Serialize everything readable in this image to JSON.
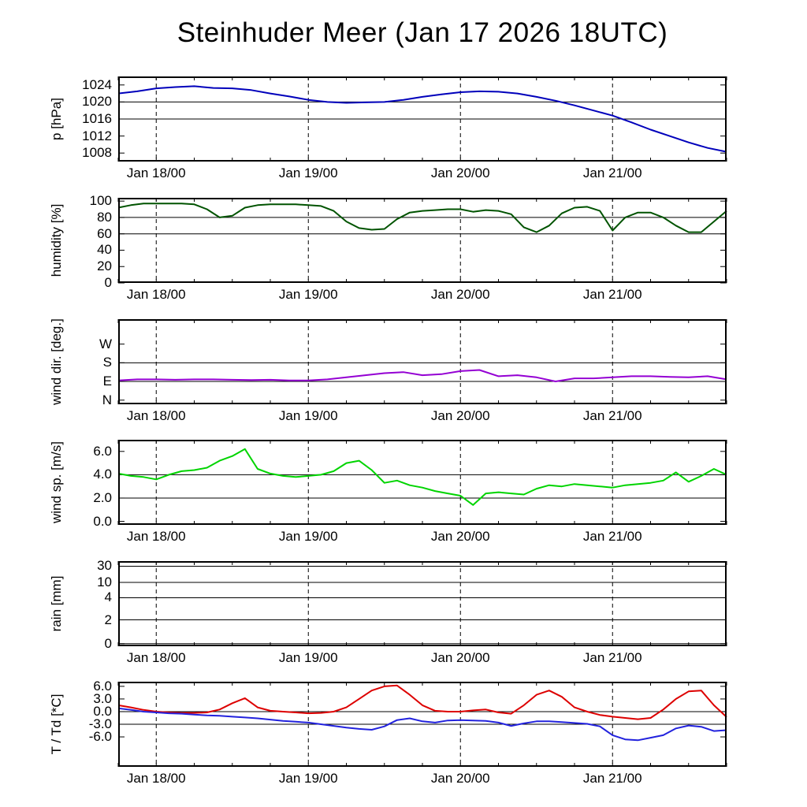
{
  "chart_data": {
    "type": "line",
    "title": "Steinhuder Meer (Jan 17 2026 18UTC)",
    "x_axis": {
      "lim": [
        0,
        96
      ],
      "minor_step": 6,
      "major_ticks": [
        {
          "t": 6,
          "label": "Jan 18/00"
        },
        {
          "t": 30,
          "label": "Jan 19/00"
        },
        {
          "t": 54,
          "label": "Jan 20/00"
        },
        {
          "t": 78,
          "label": "Jan 21/00"
        }
      ]
    },
    "panels": [
      {
        "id": "pressure",
        "ylabel": "p [hPa]",
        "ylim": [
          1006,
          1026
        ],
        "yticks": {
          "values": [
            1008,
            1012,
            1016,
            1020,
            1024
          ],
          "labels": [
            "1008",
            "1012",
            "1016",
            "1020",
            "1024"
          ]
        },
        "grid": [
          1016,
          1020
        ],
        "series": [
          {
            "name": "pressure",
            "color": "#0000bb",
            "t0": 0,
            "t_step": 3,
            "values": [
              1022.0,
              1022.5,
              1023.2,
              1023.5,
              1023.7,
              1023.3,
              1023.2,
              1022.8,
              1022.0,
              1021.3,
              1020.5,
              1020.0,
              1019.8,
              1019.9,
              1020.0,
              1020.5,
              1021.2,
              1021.8,
              1022.3,
              1022.5,
              1022.4,
              1022.0,
              1021.2,
              1020.3,
              1019.2,
              1018.0,
              1016.8,
              1015.2,
              1013.5,
              1012.0,
              1010.5,
              1009.2,
              1008.3
            ]
          }
        ]
      },
      {
        "id": "humidity",
        "ylabel": "humidity [%]",
        "ylim": [
          0,
          104
        ],
        "yticks": {
          "values": [
            0,
            20,
            40,
            60,
            80,
            100
          ],
          "labels": [
            "0",
            "20",
            "40",
            "60",
            "80",
            "100"
          ]
        },
        "grid": [
          60,
          80
        ],
        "series": [
          {
            "name": "humidity",
            "color": "#005300",
            "t0": 0,
            "t_step": 2,
            "values": [
              92,
              95,
              97,
              97,
              97,
              97,
              96,
              90,
              80,
              82,
              92,
              95,
              96,
              96,
              96,
              95,
              94,
              88,
              75,
              67,
              65,
              66,
              78,
              86,
              88,
              89,
              90,
              90,
              87,
              89,
              88,
              84,
              68,
              62,
              70,
              85,
              92,
              93,
              88,
              64,
              80,
              86,
              86,
              80,
              70,
              62,
              62,
              75,
              88
            ]
          }
        ]
      },
      {
        "id": "wind-direction",
        "ylabel": "wind dir. [deg.]",
        "ylim": [
          -20,
          390
        ],
        "yticks": {
          "values": [
            0,
            90,
            180,
            270
          ],
          "labels": [
            "N",
            "E",
            "S",
            "W"
          ]
        },
        "grid": [
          90,
          180
        ],
        "series": [
          {
            "name": "wind-direction",
            "color": "#9400d3",
            "t0": 0,
            "t_step": 3,
            "values": [
              95,
              100,
              100,
              98,
              100,
              100,
              98,
              97,
              98,
              95,
              95,
              100,
              110,
              120,
              130,
              135,
              120,
              125,
              140,
              145,
              115,
              120,
              110,
              90,
              105,
              105,
              110,
              115,
              115,
              112,
              110,
              115,
              100
            ]
          }
        ]
      },
      {
        "id": "wind-speed",
        "ylabel": "wind sp. [m/s]",
        "ylim": [
          -0.3,
          7.0
        ],
        "yticks": {
          "values": [
            0,
            2,
            4,
            6
          ],
          "labels": [
            "0.0",
            "2.0",
            "4.0",
            "6.0"
          ]
        },
        "grid": [
          2,
          4
        ],
        "series": [
          {
            "name": "wind-speed",
            "color": "#00d400",
            "t0": 0,
            "t_step": 2,
            "values": [
              4.1,
              3.9,
              3.8,
              3.6,
              4.0,
              4.3,
              4.4,
              4.6,
              5.2,
              5.6,
              6.2,
              4.5,
              4.1,
              3.9,
              3.8,
              3.9,
              4.0,
              4.3,
              5.0,
              5.2,
              4.4,
              3.3,
              3.5,
              3.1,
              2.9,
              2.6,
              2.4,
              2.2,
              1.4,
              2.4,
              2.5,
              2.4,
              2.3,
              2.8,
              3.1,
              3.0,
              3.2,
              3.1,
              3.0,
              2.9,
              3.1,
              3.2,
              3.3,
              3.5,
              4.2,
              3.4,
              3.9,
              4.5,
              4.0
            ]
          }
        ]
      },
      {
        "id": "rain",
        "ylabel": "rain [mm]",
        "yscale": "custom",
        "ylim": [
          0,
          30
        ],
        "yticks": {
          "labels": [
            "0",
            "2",
            "4",
            "10",
            "30"
          ],
          "fracs": [
            0.03,
            0.31,
            0.57,
            0.75,
            0.94
          ]
        },
        "series": []
      },
      {
        "id": "temperature",
        "ylabel": "T / Td [*C]",
        "ylim": [
          -13.1,
          7.1
        ],
        "yticks": {
          "values": [
            -6,
            -3,
            0,
            3,
            6
          ],
          "labels": [
            "-6.0",
            "-3.0",
            "0.0",
            "3.0",
            "6.0"
          ]
        },
        "grid": [
          -3,
          0
        ],
        "series": [
          {
            "name": "temperature",
            "color": "#dd0000",
            "t0": 0,
            "t_step": 2,
            "values": [
              1.5,
              1.0,
              0.4,
              0.0,
              -0.2,
              -0.3,
              -0.3,
              -0.2,
              0.5,
              2.0,
              3.2,
              1.0,
              0.2,
              0.0,
              -0.2,
              -0.4,
              -0.3,
              0.0,
              1.0,
              3.0,
              5.0,
              6.0,
              6.2,
              4.0,
              1.5,
              0.2,
              0.0,
              0.0,
              0.3,
              0.5,
              -0.2,
              -0.5,
              1.5,
              4.0,
              5.0,
              3.5,
              1.0,
              0.0,
              -0.8,
              -1.2,
              -1.5,
              -1.8,
              -1.5,
              0.5,
              3.0,
              4.8,
              5.0,
              1.5,
              -1.3
            ]
          },
          {
            "name": "dew-point",
            "color": "#2222dd",
            "t0": 0,
            "t_step": 2,
            "values": [
              0.8,
              0.4,
              0.0,
              -0.2,
              -0.4,
              -0.5,
              -0.7,
              -0.9,
              -1.0,
              -1.2,
              -1.4,
              -1.6,
              -1.9,
              -2.2,
              -2.4,
              -2.6,
              -3.0,
              -3.4,
              -3.8,
              -4.1,
              -4.3,
              -3.5,
              -2.0,
              -1.6,
              -2.3,
              -2.6,
              -2.1,
              -2.0,
              -2.1,
              -2.2,
              -2.6,
              -3.4,
              -2.8,
              -2.3,
              -2.3,
              -2.5,
              -2.7,
              -2.9,
              -3.5,
              -5.6,
              -6.6,
              -6.8,
              -6.2,
              -5.6,
              -4.0,
              -3.3,
              -3.6,
              -4.6,
              -4.4
            ]
          }
        ]
      }
    ]
  }
}
